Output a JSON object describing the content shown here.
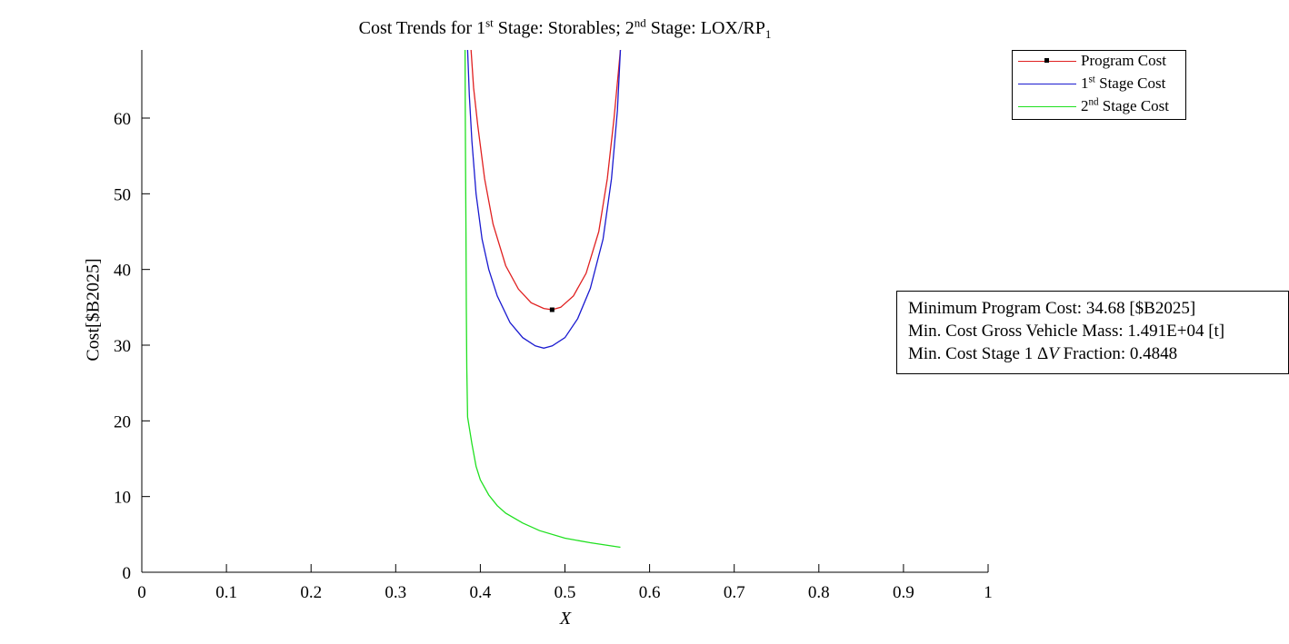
{
  "chart_data": {
    "type": "line",
    "title_parts": {
      "pre": "Cost Trends for 1",
      "sup1": "st",
      "mid": " Stage: Storables; 2",
      "sup2": "nd",
      "post": " Stage: LOX/RP",
      "sub": "1"
    },
    "xlabel": "X",
    "ylabel": "Cost[$B2025]",
    "xlim": [
      0,
      1
    ],
    "ylim": [
      0,
      69
    ],
    "xticks": [
      "0",
      "0.1",
      "0.2",
      "0.3",
      "0.4",
      "0.5",
      "0.6",
      "0.7",
      "0.8",
      "0.9",
      "1"
    ],
    "yticks": [
      "0",
      "10",
      "20",
      "30",
      "40",
      "50",
      "60"
    ],
    "grid": false,
    "legend_position": "top-right",
    "series": [
      {
        "name_parts": {
          "pre": "Program Cost",
          "sup": "",
          "post": ""
        },
        "color": "#e02020",
        "x": [
          0.389,
          0.392,
          0.397,
          0.405,
          0.415,
          0.43,
          0.445,
          0.46,
          0.475,
          0.4848,
          0.495,
          0.51,
          0.525,
          0.54,
          0.55,
          0.558,
          0.563,
          0.5655
        ],
        "y": [
          69,
          64,
          59,
          52,
          46,
          40.5,
          37.4,
          35.6,
          34.85,
          34.68,
          35.0,
          36.5,
          39.5,
          45,
          52,
          60,
          66,
          69
        ]
      },
      {
        "name_parts": {
          "pre": "1",
          "sup": "st",
          "post": " Stage Cost"
        },
        "color": "#1a1ad0",
        "x": [
          0.385,
          0.387,
          0.39,
          0.395,
          0.402,
          0.41,
          0.42,
          0.435,
          0.45,
          0.465,
          0.475,
          0.485,
          0.5,
          0.515,
          0.53,
          0.545,
          0.555,
          0.562,
          0.5655
        ],
        "y": [
          69,
          63,
          57,
          50,
          44,
          40,
          36.5,
          33,
          31,
          29.9,
          29.6,
          29.9,
          31,
          33.5,
          37.5,
          44,
          52,
          61,
          69
        ]
      },
      {
        "name_parts": {
          "pre": "2",
          "sup": "nd",
          "post": " Stage Cost"
        },
        "color": "#20e020",
        "x": [
          0.382,
          0.3822,
          0.3825,
          0.383,
          0.3835,
          0.384,
          0.385,
          0.39,
          0.395,
          0.4,
          0.41,
          0.42,
          0.43,
          0.45,
          0.47,
          0.5,
          0.53,
          0.5655
        ],
        "y": [
          69,
          62,
          55,
          45,
          35,
          27,
          20.5,
          17,
          14,
          12.2,
          10.2,
          8.8,
          7.8,
          6.5,
          5.5,
          4.5,
          3.9,
          3.3
        ]
      }
    ],
    "minimum_marker": {
      "x": 0.4848,
      "y": 34.68
    },
    "info_lines": {
      "line1": "Minimum Program Cost: 34.68 [$B2025]",
      "line2": "Min. Cost Gross Vehicle Mass: 1.491E+04 [t]",
      "line3_pre": "Min. Cost Stage 1 Δ",
      "line3_var": "V",
      "line3_post": " Fraction: 0.4848"
    }
  }
}
